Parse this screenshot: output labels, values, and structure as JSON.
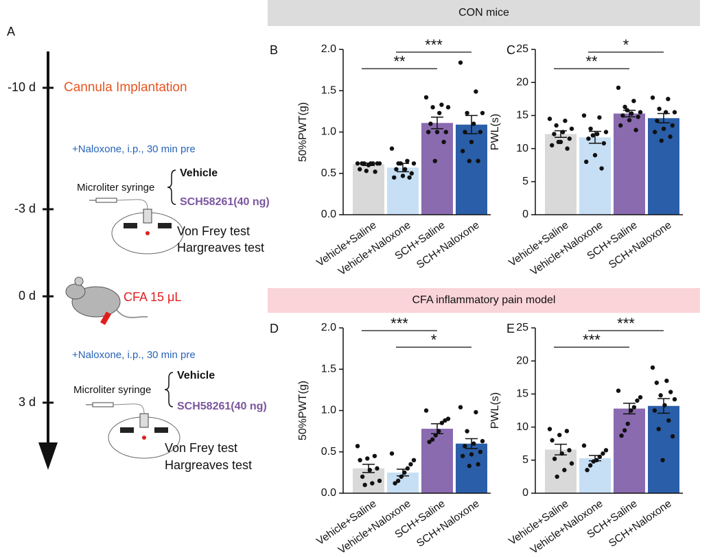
{
  "panel_a": {
    "letter": "A",
    "timepoints": [
      "-10 d",
      "-3 d",
      "0 d",
      "3 d"
    ],
    "cannula": "Cannula Implantation",
    "naloxone_1": "+Naloxone, i.p., 30 min pre",
    "syringe_1": "Microliter syringe",
    "vehicle_1": "Vehicle",
    "sch_1": "SCH58261(40 ng)",
    "vonfrey_1": "Von Frey test",
    "hargreaves_1": "Hargreaves test",
    "cfa": "CFA  15 μL",
    "naloxone_2": "+Naloxone, i.p., 30 min pre",
    "syringe_2": "Microliter syringe",
    "vehicle_2": "Vehicle",
    "sch_2": "SCH58261(40 ng)",
    "vonfrey_2": "Von Frey test",
    "hargreaves_2": "Hargreaves test"
  },
  "banners": [
    "CON mice",
    "CFA inflammatory pain model"
  ],
  "chart_data": [
    {
      "type": "bar",
      "panel": "B",
      "ylabel": "50%PWT(g)",
      "categories": [
        "Vehicle+Saline",
        "Vehicle+Naloxone",
        "SCH+Saline",
        "SCH+Naloxone"
      ],
      "colors": [
        "#d9d9d9",
        "#c6dff5",
        "#8a6bb0",
        "#2a5ea8"
      ],
      "values": [
        0.61,
        0.57,
        1.11,
        1.09
      ],
      "errors": [
        0.015,
        0.05,
        0.07,
        0.11
      ],
      "points": [
        [
          0.62,
          0.62,
          0.62,
          0.62,
          0.62,
          0.62,
          0.62,
          0.6,
          0.55,
          0.52,
          0.53
        ],
        [
          0.8,
          0.65,
          0.62,
          0.62,
          0.55,
          0.55,
          0.5,
          0.47,
          0.45,
          0.45,
          0.62
        ],
        [
          1.42,
          1.33,
          1.3,
          1.3,
          1.23,
          1.1,
          1.0,
          1.0,
          1.0,
          0.88,
          0.65
        ],
        [
          1.84,
          1.49,
          1.23,
          1.23,
          1.1,
          1.0,
          1.0,
          0.88,
          0.77,
          0.65,
          0.65
        ]
      ],
      "ylim": [
        0,
        2
      ],
      "yticks": [
        {
          "value": 0,
          "label": "0.0"
        },
        0.5,
        {
          "value": 1,
          "label": "1.0"
        },
        1.5,
        {
          "value": 2,
          "label": "2.0"
        }
      ],
      "annotations": [
        {
          "text": "**",
          "groups": [
            "Vehicle+Saline",
            "SCH+Saline"
          ]
        },
        {
          "text": "***",
          "groups": [
            "Vehicle+Naloxone",
            "SCH+Naloxone"
          ]
        }
      ]
    },
    {
      "type": "bar",
      "panel": "C",
      "ylabel": "PWL(s)",
      "categories": [
        "Vehicle+Saline",
        "Vehicle+Naloxone",
        "SCH+Saline",
        "SCH+Naloxone"
      ],
      "colors": [
        "#d9d9d9",
        "#c6dff5",
        "#8a6bb0",
        "#2a5ea8"
      ],
      "values": [
        12.2,
        11.7,
        15.3,
        14.6
      ],
      "errors": [
        0.5,
        0.9,
        0.5,
        0.7
      ],
      "points": [
        [
          14.5,
          14.2,
          13.5,
          13,
          12.5,
          12.2,
          11.5,
          11,
          10.5,
          10,
          11
        ],
        [
          15,
          14.7,
          13,
          12.5,
          12.2,
          11.5,
          10.8,
          9,
          8,
          7,
          12
        ],
        [
          19.2,
          17.2,
          16.3,
          15.5,
          15.3,
          15,
          14.8,
          14.3,
          13.5,
          12.8,
          15.8
        ],
        [
          17.7,
          17.5,
          16,
          15.5,
          15.5,
          14.2,
          13.5,
          13,
          12.5,
          11.8,
          11.2
        ]
      ],
      "ylim": [
        0,
        25
      ],
      "yticks": [
        0,
        5,
        10,
        15,
        20,
        25
      ],
      "annotations": [
        {
          "text": "**",
          "groups": [
            "Vehicle+Saline",
            "SCH+Saline"
          ]
        },
        {
          "text": "*",
          "groups": [
            "Vehicle+Naloxone",
            "SCH+Naloxone"
          ]
        }
      ]
    },
    {
      "type": "bar",
      "panel": "D",
      "ylabel": "50%PWT(g)",
      "categories": [
        "Vehicle+Saline",
        "Vehicle+Naloxone",
        "SCH+Saline",
        "SCH+Naloxone"
      ],
      "colors": [
        "#d9d9d9",
        "#c6dff5",
        "#8a6bb0",
        "#2a5ea8"
      ],
      "values": [
        0.3,
        0.25,
        0.78,
        0.6
      ],
      "errors": [
        0.05,
        0.04,
        0.06,
        0.06
      ],
      "points": [
        [
          0.57,
          0.45,
          0.42,
          0.4,
          0.3,
          0.28,
          0.2,
          0.15,
          0.12,
          0.1
        ],
        [
          0.48,
          0.4,
          0.35,
          0.3,
          0.25,
          0.2,
          0.15,
          0.12
        ],
        [
          1.0,
          0.9,
          0.88,
          0.85,
          0.75,
          0.7,
          0.65,
          0.62
        ],
        [
          1.04,
          0.98,
          0.75,
          0.63,
          0.6,
          0.57,
          0.5,
          0.47,
          0.45,
          0.35,
          0.33
        ]
      ],
      "ylim": [
        0,
        2
      ],
      "yticks": [
        {
          "value": 0,
          "label": "0.0"
        },
        0.5,
        {
          "value": 1,
          "label": "1.0"
        },
        1.5,
        {
          "value": 2,
          "label": "2.0"
        }
      ],
      "annotations": [
        {
          "text": "*",
          "groups": [
            "Vehicle+Naloxone",
            "SCH+Naloxone"
          ]
        },
        {
          "text": "***",
          "groups": [
            "Vehicle+Saline",
            "SCH+Saline"
          ]
        }
      ]
    },
    {
      "type": "bar",
      "panel": "E",
      "ylabel": "PWL(s)",
      "categories": [
        "Vehicle+Saline",
        "Vehicle+Naloxone",
        "SCH+Saline",
        "SCH+Naloxone"
      ],
      "colors": [
        "#d9d9d9",
        "#c6dff5",
        "#8a6bb0",
        "#2a5ea8"
      ],
      "values": [
        6.6,
        5.3,
        12.8,
        13.2
      ],
      "errors": [
        0.8,
        0.4,
        0.8,
        1.1
      ],
      "points": [
        [
          9.7,
          9.4,
          8.8,
          8,
          6.5,
          6,
          5.2,
          4.5,
          3.5,
          2.5
        ],
        [
          7.2,
          6.5,
          6,
          5.5,
          5,
          4.8,
          4.2,
          3.5
        ],
        [
          15.5,
          14.5,
          14,
          13,
          12.5,
          10.5,
          9.5,
          8.7
        ],
        [
          19,
          17,
          16.7,
          15.3,
          14.8,
          14.2,
          13.3,
          12.5,
          11,
          9.7,
          8.6,
          5
        ]
      ],
      "ylim": [
        0,
        25
      ],
      "yticks": [
        0,
        5,
        10,
        15,
        20,
        25
      ],
      "annotations": [
        {
          "text": "***",
          "groups": [
            "Vehicle+Saline",
            "SCH+Saline"
          ]
        },
        {
          "text": "***",
          "groups": [
            "Vehicle+Naloxone",
            "SCH+Naloxone"
          ]
        }
      ]
    }
  ]
}
